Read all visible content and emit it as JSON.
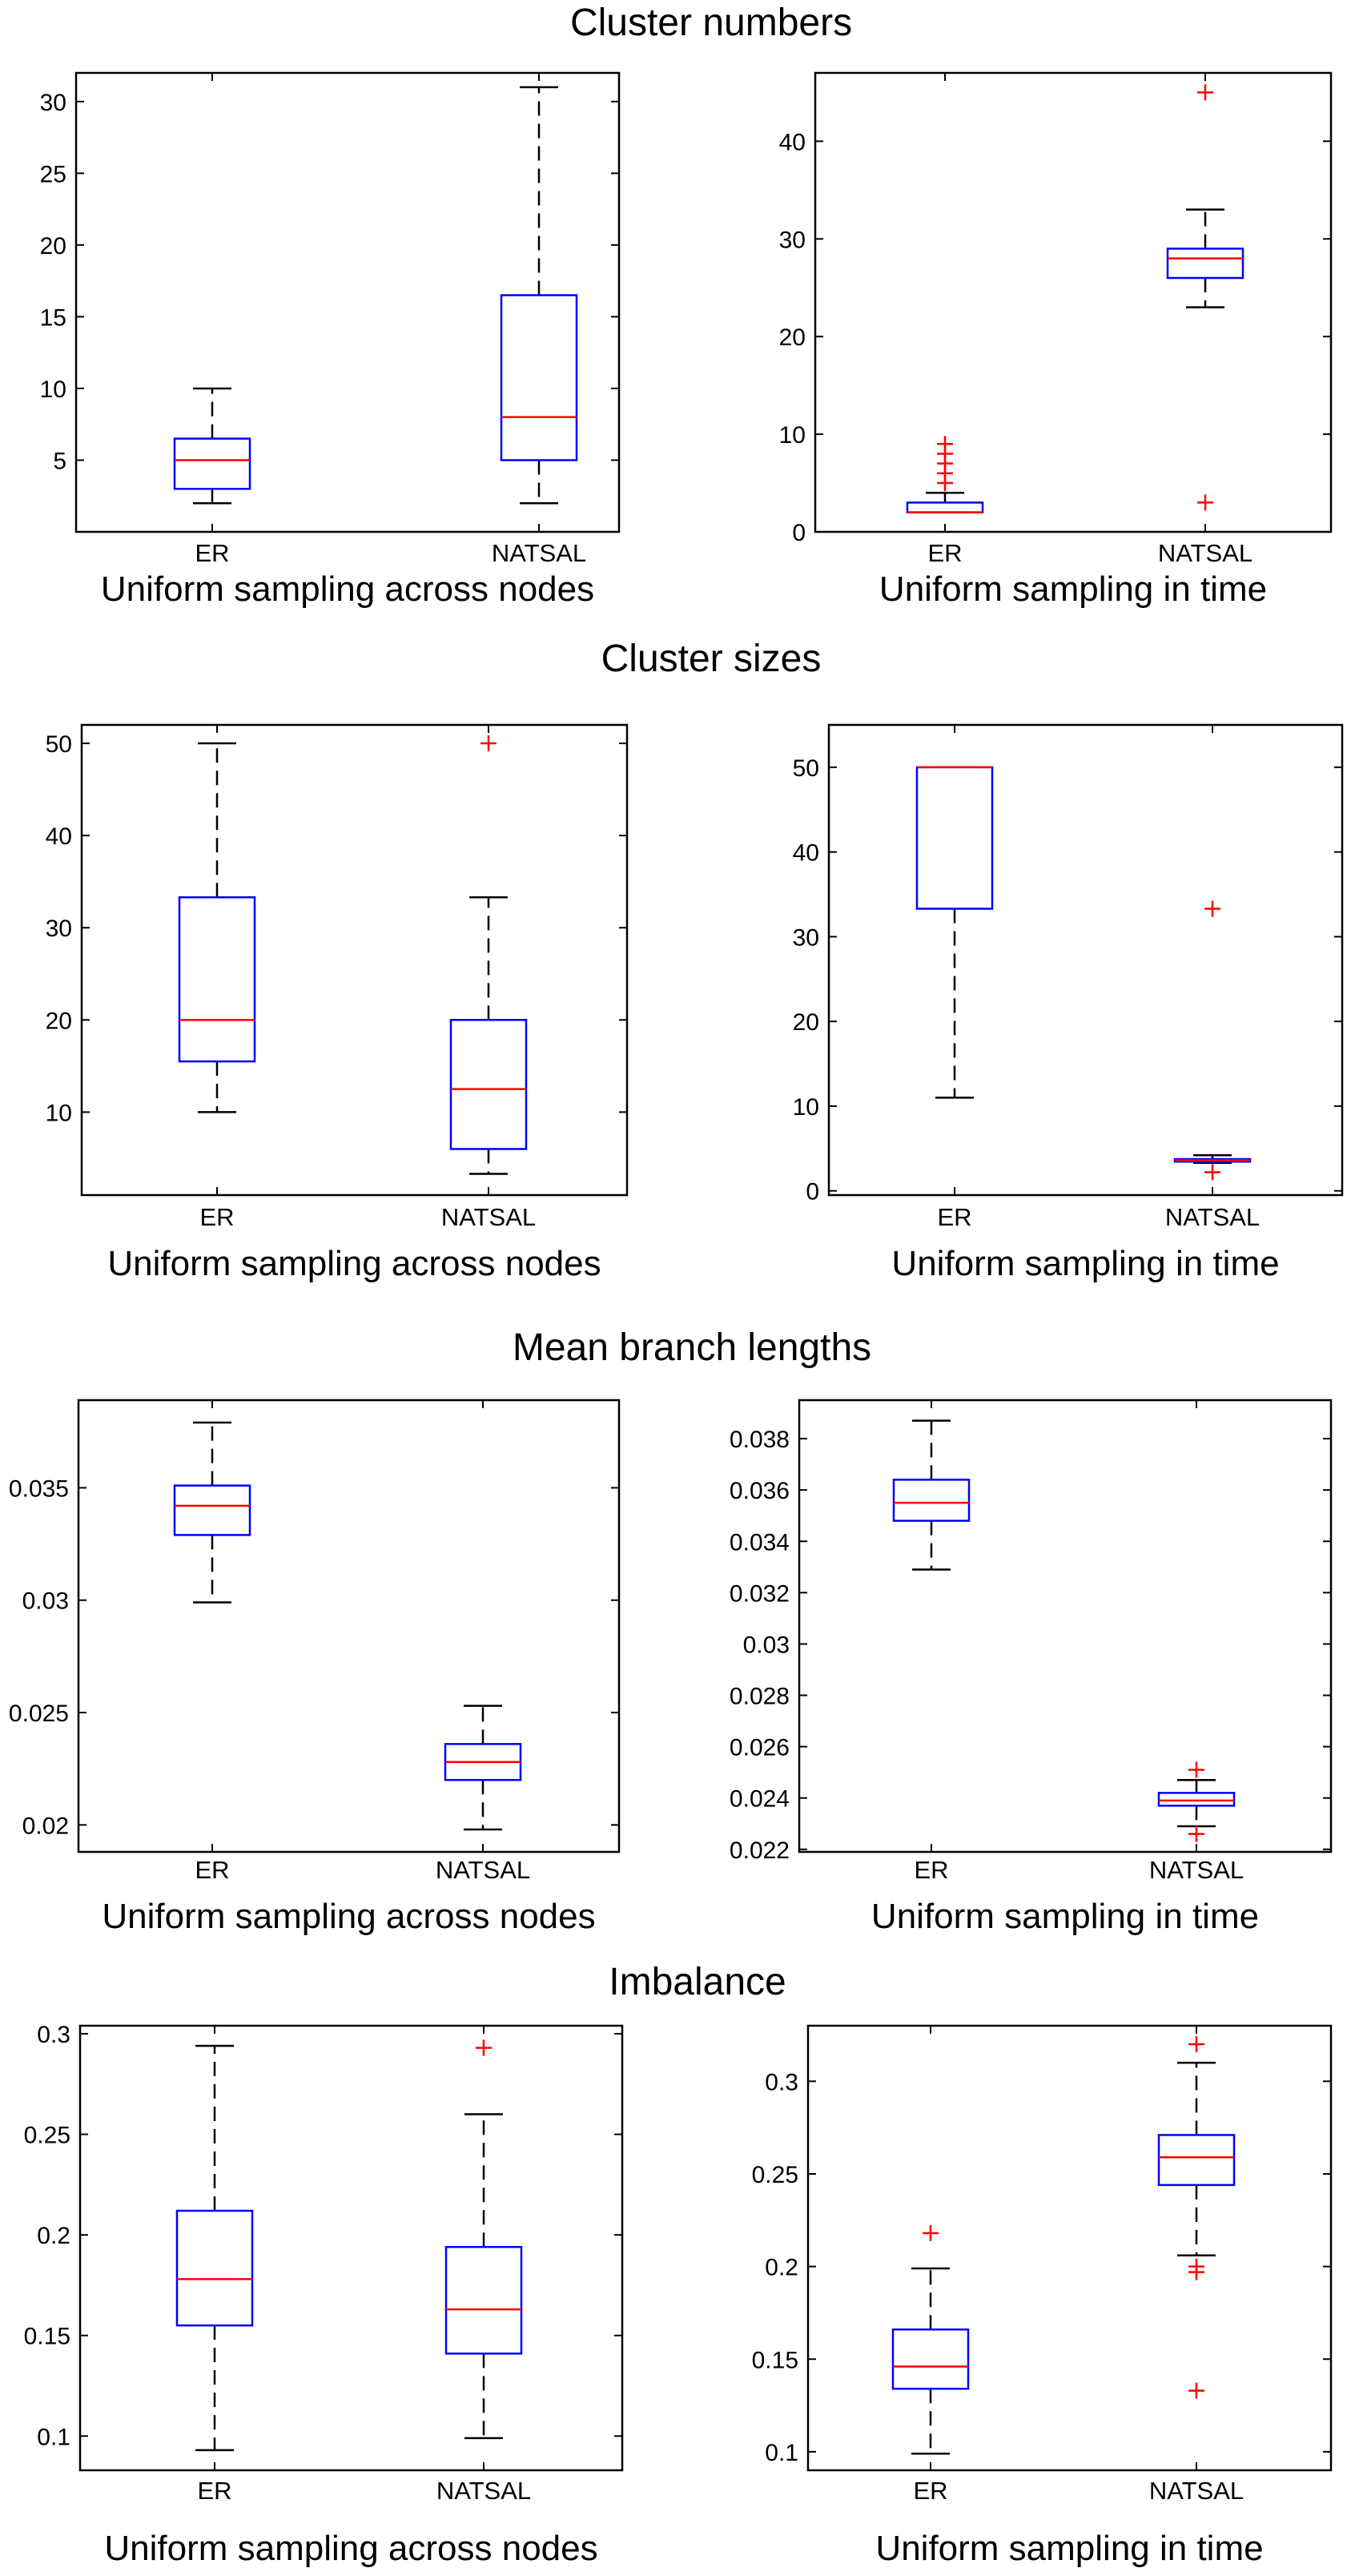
{
  "colors": {
    "box": "#0000ff",
    "median": "#ff0000",
    "outlier": "#ff0000",
    "whisker": "#000000",
    "frame": "#000000"
  },
  "sections": [
    {
      "title": "Cluster numbers"
    },
    {
      "title": "Cluster sizes"
    },
    {
      "title": "Mean branch lengths"
    },
    {
      "title": "Imbalance"
    }
  ],
  "chart_data": [
    {
      "type": "box",
      "section": "Cluster numbers",
      "xlabel": "Uniform sampling across nodes",
      "categories": [
        "ER",
        "NATSAL"
      ],
      "ylim": [
        0,
        32
      ],
      "yticks": [
        5,
        10,
        15,
        20,
        25,
        30
      ],
      "ytick_labels": [
        "5",
        "10",
        "15",
        "20",
        "25",
        "30"
      ],
      "boxes": [
        {
          "category": "ER",
          "min": 2,
          "q1": 3,
          "median": 5,
          "q3": 6.5,
          "max": 10,
          "outliers": []
        },
        {
          "category": "NATSAL",
          "min": 2,
          "q1": 5,
          "median": 8,
          "q3": 16.5,
          "max": 31,
          "outliers": []
        }
      ]
    },
    {
      "type": "box",
      "section": "Cluster numbers",
      "xlabel": "Uniform sampling in time",
      "categories": [
        "ER",
        "NATSAL"
      ],
      "ylim": [
        0,
        47
      ],
      "yticks": [
        0,
        10,
        20,
        30,
        40
      ],
      "ytick_labels": [
        "0",
        "10",
        "20",
        "30",
        "40"
      ],
      "boxes": [
        {
          "category": "ER",
          "min": 2,
          "q1": 2,
          "median": 2,
          "q3": 3,
          "max": 4,
          "outliers": [
            5,
            6,
            7,
            8,
            9
          ]
        },
        {
          "category": "NATSAL",
          "min": 23,
          "q1": 26,
          "median": 28,
          "q3": 29,
          "max": 33,
          "outliers": [
            45,
            3
          ]
        }
      ]
    },
    {
      "type": "box",
      "section": "Cluster sizes",
      "xlabel": "Uniform sampling across nodes",
      "categories": [
        "ER",
        "NATSAL"
      ],
      "ylim": [
        1,
        52
      ],
      "yticks": [
        10,
        20,
        30,
        40,
        50
      ],
      "ytick_labels": [
        "10",
        "20",
        "30",
        "40",
        "50"
      ],
      "boxes": [
        {
          "category": "ER",
          "min": 10,
          "q1": 15.5,
          "median": 20,
          "q3": 33.3,
          "max": 50,
          "outliers": []
        },
        {
          "category": "NATSAL",
          "min": 3.3,
          "q1": 6,
          "median": 12.5,
          "q3": 20,
          "max": 33.3,
          "outliers": [
            50
          ]
        }
      ]
    },
    {
      "type": "box",
      "section": "Cluster sizes",
      "xlabel": "Uniform sampling in time",
      "categories": [
        "ER",
        "NATSAL"
      ],
      "ylim": [
        -0.5,
        55
      ],
      "yticks": [
        0,
        10,
        20,
        30,
        40,
        50
      ],
      "ytick_labels": [
        "0",
        "10",
        "20",
        "30",
        "40",
        "50"
      ],
      "boxes": [
        {
          "category": "ER",
          "min": 11,
          "q1": 33.3,
          "median": 50,
          "q3": 50,
          "max": 50,
          "outliers": []
        },
        {
          "category": "NATSAL",
          "min": 3.3,
          "q1": 3.45,
          "median": 3.6,
          "q3": 3.75,
          "max": 4.2,
          "outliers": [
            33.3,
            2.2
          ]
        }
      ]
    },
    {
      "type": "box",
      "section": "Mean branch lengths",
      "xlabel": "Uniform sampling across nodes",
      "categories": [
        "ER",
        "NATSAL"
      ],
      "ylim": [
        0.0188,
        0.0389
      ],
      "yticks": [
        0.02,
        0.025,
        0.03,
        0.035
      ],
      "ytick_labels": [
        "0.02",
        "0.025",
        "0.03",
        "0.035"
      ],
      "boxes": [
        {
          "category": "ER",
          "min": 0.0299,
          "q1": 0.0329,
          "median": 0.0342,
          "q3": 0.0351,
          "max": 0.0379,
          "outliers": []
        },
        {
          "category": "NATSAL",
          "min": 0.0198,
          "q1": 0.022,
          "median": 0.0228,
          "q3": 0.0236,
          "max": 0.0253,
          "outliers": []
        }
      ]
    },
    {
      "type": "box",
      "section": "Mean branch lengths",
      "xlabel": "Uniform sampling in time",
      "categories": [
        "ER",
        "NATSAL"
      ],
      "ylim": [
        0.0219,
        0.0395
      ],
      "yticks": [
        0.022,
        0.024,
        0.026,
        0.028,
        0.03,
        0.032,
        0.034,
        0.036,
        0.038
      ],
      "ytick_labels": [
        "0.022",
        "0.024",
        "0.026",
        "0.028",
        "0.03",
        "0.032",
        "0.034",
        "0.036",
        "0.038"
      ],
      "boxes": [
        {
          "category": "ER",
          "min": 0.0329,
          "q1": 0.0348,
          "median": 0.0355,
          "q3": 0.0364,
          "max": 0.0387,
          "outliers": []
        },
        {
          "category": "NATSAL",
          "min": 0.0229,
          "q1": 0.0237,
          "median": 0.0239,
          "q3": 0.0242,
          "max": 0.0247,
          "outliers": [
            0.0251,
            0.0226
          ]
        }
      ]
    },
    {
      "type": "box",
      "section": "Imbalance",
      "xlabel": "Uniform sampling across nodes",
      "categories": [
        "ER",
        "NATSAL"
      ],
      "ylim": [
        0.083,
        0.304
      ],
      "yticks": [
        0.1,
        0.15,
        0.2,
        0.25,
        0.3
      ],
      "ytick_labels": [
        "0.1",
        "0.15",
        "0.2",
        "0.25",
        "0.3"
      ],
      "boxes": [
        {
          "category": "ER",
          "min": 0.093,
          "q1": 0.155,
          "median": 0.178,
          "q3": 0.212,
          "max": 0.294,
          "outliers": []
        },
        {
          "category": "NATSAL",
          "min": 0.099,
          "q1": 0.141,
          "median": 0.163,
          "q3": 0.194,
          "max": 0.26,
          "outliers": [
            0.293
          ]
        }
      ]
    },
    {
      "type": "box",
      "section": "Imbalance",
      "xlabel": "Uniform sampling in time",
      "categories": [
        "ER",
        "NATSAL"
      ],
      "ylim": [
        0.09,
        0.33
      ],
      "yticks": [
        0.1,
        0.15,
        0.2,
        0.25,
        0.3
      ],
      "ytick_labels": [
        "0.1",
        "0.15",
        "0.2",
        "0.25",
        "0.3"
      ],
      "boxes": [
        {
          "category": "ER",
          "min": 0.099,
          "q1": 0.134,
          "median": 0.146,
          "q3": 0.166,
          "max": 0.199,
          "outliers": [
            0.218
          ]
        },
        {
          "category": "NATSAL",
          "min": 0.206,
          "q1": 0.244,
          "median": 0.259,
          "q3": 0.271,
          "max": 0.31,
          "outliers": [
            0.32,
            0.2,
            0.197,
            0.133
          ]
        }
      ]
    }
  ]
}
